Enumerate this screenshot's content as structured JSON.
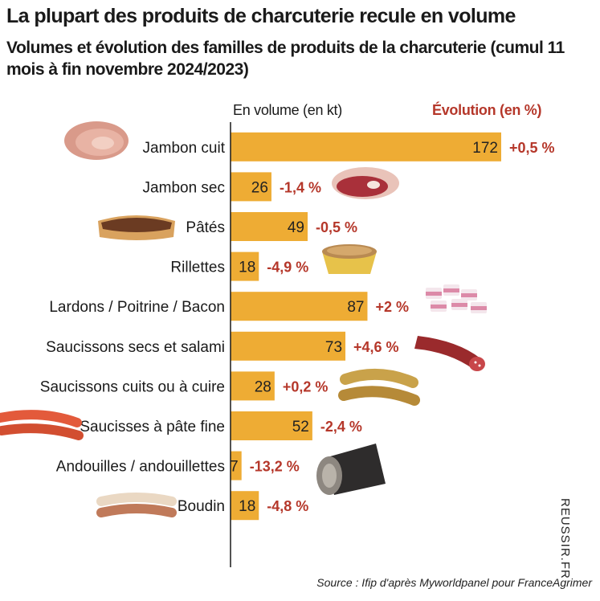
{
  "header": {
    "title": "La plupart des produits de charcuterie recule en volume",
    "subtitle": "Volumes et évolution des familles de produits de la charcuterie (cumul 11 mois à fin novembre 2024/2023)",
    "col_volume": "En volume (en kt)",
    "col_evolution": "Évolution (en %)"
  },
  "footer": {
    "source": "Source : Ifip d'après Myworldpanel pour FranceAgrimer",
    "credit": "REUSSIR.FR"
  },
  "colors": {
    "bar": "#eeac34",
    "evolution": "#b5372a",
    "axis": "#1a1a1a"
  },
  "chart_data": {
    "type": "bar",
    "orientation": "horizontal",
    "categories": [
      "Jambon cuit",
      "Jambon sec",
      "Pâtés",
      "Rillettes",
      "Lardons / Poitrine / Bacon",
      "Saucissons secs et salami",
      "Saucissons cuits ou à cuire",
      "Saucisses à pâte fine",
      "Andouilles / andouillettes",
      "Boudin"
    ],
    "values": [
      172,
      26,
      49,
      18,
      87,
      73,
      28,
      52,
      7,
      18
    ],
    "evolution_labels": [
      "+0,5 %",
      "-1,4 %",
      "-0,5 %",
      "-4,9 %",
      "+2 %",
      "+4,6 %",
      "+0,2 %",
      "-2,4 %",
      "-13,2 %",
      "-4,8 %"
    ],
    "illustrations": [
      "ham-icon",
      "dry-ham-icon",
      "pate-icon",
      "rillettes-icon",
      "bacon-icon",
      "saucisson-icon",
      "sausages-icon",
      "sausage-links-icon",
      "andouille-icon",
      "boudin-icon"
    ]
  }
}
